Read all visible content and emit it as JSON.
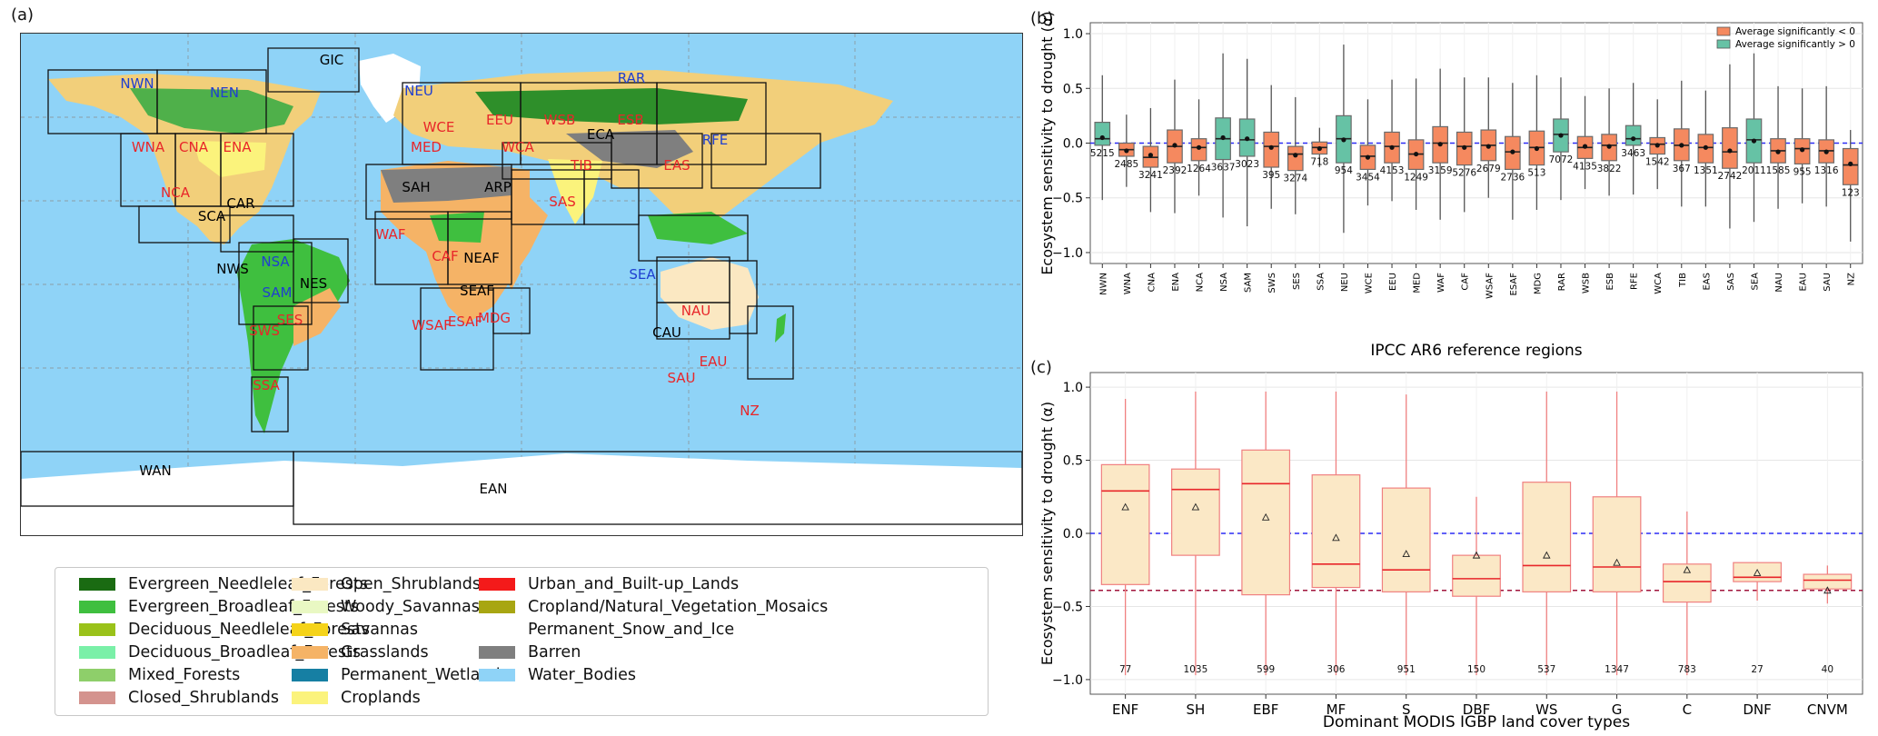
{
  "panel_labels": {
    "a": "(a)",
    "b": "(b)",
    "c": "(c)"
  },
  "map": {
    "regions": [
      {
        "label": "GIC",
        "color": "#000000"
      },
      {
        "label": "NWN",
        "color": "#1f3fd0"
      },
      {
        "label": "NEN",
        "color": "#1f3fd0"
      },
      {
        "label": "WNA",
        "color": "#e8262a"
      },
      {
        "label": "CNA",
        "color": "#e8262a"
      },
      {
        "label": "ENA",
        "color": "#e8262a"
      },
      {
        "label": "NCA",
        "color": "#e8262a"
      },
      {
        "label": "CAR",
        "color": "#000000"
      },
      {
        "label": "SCA",
        "color": "#000000"
      },
      {
        "label": "NWS",
        "color": "#000000"
      },
      {
        "label": "NSA",
        "color": "#1f3fd0"
      },
      {
        "label": "SAM",
        "color": "#1f3fd0"
      },
      {
        "label": "NES",
        "color": "#000000"
      },
      {
        "label": "SWS",
        "color": "#e8262a"
      },
      {
        "label": "SES",
        "color": "#e8262a"
      },
      {
        "label": "SSA",
        "color": "#e8262a"
      },
      {
        "label": "NEU",
        "color": "#1f3fd0"
      },
      {
        "label": "WCE",
        "color": "#e8262a"
      },
      {
        "label": "MED",
        "color": "#e8262a"
      },
      {
        "label": "EEU",
        "color": "#e8262a"
      },
      {
        "label": "WSB",
        "color": "#e8262a"
      },
      {
        "label": "ESB",
        "color": "#e8262a"
      },
      {
        "label": "RAR",
        "color": "#1f3fd0"
      },
      {
        "label": "RFE",
        "color": "#1f3fd0"
      },
      {
        "label": "WCA",
        "color": "#e8262a"
      },
      {
        "label": "ECA",
        "color": "#000000"
      },
      {
        "label": "TIB",
        "color": "#e8262a"
      },
      {
        "label": "EAS",
        "color": "#e8262a"
      },
      {
        "label": "SAS",
        "color": "#e8262a"
      },
      {
        "label": "SAH",
        "color": "#000000"
      },
      {
        "label": "ARP",
        "color": "#000000"
      },
      {
        "label": "WAF",
        "color": "#e8262a"
      },
      {
        "label": "CAF",
        "color": "#e8262a"
      },
      {
        "label": "NEAF",
        "color": "#000000"
      },
      {
        "label": "SEAF",
        "color": "#000000"
      },
      {
        "label": "WSAF",
        "color": "#e8262a"
      },
      {
        "label": "ESAF",
        "color": "#e8262a"
      },
      {
        "label": "MDG",
        "color": "#e8262a"
      },
      {
        "label": "SEA",
        "color": "#1f3fd0"
      },
      {
        "label": "NAU",
        "color": "#e8262a"
      },
      {
        "label": "CAU",
        "color": "#000000"
      },
      {
        "label": "EAU",
        "color": "#e8262a"
      },
      {
        "label": "SAU",
        "color": "#e8262a"
      },
      {
        "label": "NZ",
        "color": "#e8262a"
      },
      {
        "label": "WAN",
        "color": "#000000"
      },
      {
        "label": "EAN",
        "color": "#000000"
      }
    ]
  },
  "legend": [
    {
      "label": "Evergreen_Needleleaf_Forests",
      "color": "#1a6b12"
    },
    {
      "label": "Evergreen_Broadleaf_Forests",
      "color": "#3fbf3f"
    },
    {
      "label": "Deciduous_Needleleaf_Forests",
      "color": "#9ac21a"
    },
    {
      "label": "Deciduous_Broadleaf_Forests",
      "color": "#7af0a8"
    },
    {
      "label": "Mixed_Forests",
      "color": "#8ecf6a"
    },
    {
      "label": "Closed_Shrublands",
      "color": "#d4938e"
    },
    {
      "label": "Open_Shrublands",
      "color": "#fbe8c2"
    },
    {
      "label": "Woody_Savannas",
      "color": "#e9f8c3"
    },
    {
      "label": "Savannas",
      "color": "#f5d31a"
    },
    {
      "label": "Grasslands",
      "color": "#f5b366"
    },
    {
      "label": "Permanent_Wetlands",
      "color": "#167fa3"
    },
    {
      "label": "Croplands",
      "color": "#fbf37c"
    },
    {
      "label": "Urban_and_Built-up_Lands",
      "color": "#f41a1a"
    },
    {
      "label": "Cropland/Natural_Vegetation_Mosaics",
      "color": "#a8a612"
    },
    {
      "label": "Permanent_Snow_and_Ice",
      "color": "#ffffff"
    },
    {
      "label": "Barren",
      "color": "#7f7f7f"
    },
    {
      "label": "Water_Bodies",
      "color": "#8fd3f7"
    }
  ],
  "chart_data": [
    {
      "panel": "(b)",
      "type": "box",
      "xlabel": "IPCC AR6 reference regions",
      "ylabel": "Ecosystem sensitivity to drought (α)",
      "ylim": [
        -1.1,
        1.1
      ],
      "yticks": [
        "1.0",
        "0.5",
        "0.0",
        "−0.5",
        "−1.0"
      ],
      "hline": 0,
      "legend": {
        "placement": "top-right",
        "entries": [
          {
            "label": "Average significantly < 0",
            "color": "#f5895f"
          },
          {
            "label": "Average significantly > 0",
            "color": "#66c2a5"
          }
        ]
      },
      "categories": [
        "NWN",
        "WNA",
        "CNA",
        "ENA",
        "NCA",
        "NSA",
        "SAM",
        "SWS",
        "SES",
        "SSA",
        "NEU",
        "WCE",
        "EEU",
        "MED",
        "WAF",
        "CAF",
        "WSAF",
        "ESAF",
        "MDG",
        "RAR",
        "WSB",
        "ESB",
        "RFE",
        "WCA",
        "TIB",
        "EAS",
        "SAS",
        "SEA",
        "NAU",
        "EAU",
        "SAU",
        "NZ"
      ],
      "counts": [
        "5215",
        "2485",
        "3241",
        "2392",
        "1264",
        "3637",
        "3023",
        "395",
        "3274",
        "718",
        "954",
        "3454",
        "4153",
        "1249",
        "3159",
        "5276",
        "2679",
        "2736",
        "513",
        "7072",
        "4135",
        "3822",
        "3463",
        "1542",
        "367",
        "1351",
        "2742",
        "2011",
        "1585",
        "955",
        "1316",
        "123"
      ],
      "sign": [
        "pos",
        "neg",
        "neg",
        "neg",
        "neg",
        "pos",
        "pos",
        "neg",
        "neg",
        "neg",
        "pos",
        "neg",
        "neg",
        "neg",
        "neg",
        "neg",
        "neg",
        "neg",
        "neg",
        "pos",
        "neg",
        "neg",
        "pos",
        "neg",
        "neg",
        "neg",
        "neg",
        "pos",
        "neg",
        "neg",
        "neg",
        "neg"
      ],
      "q1": [
        -0.02,
        -0.12,
        -0.22,
        -0.18,
        -0.16,
        -0.15,
        -0.12,
        -0.22,
        -0.25,
        -0.1,
        -0.18,
        -0.24,
        -0.18,
        -0.24,
        -0.18,
        -0.2,
        -0.16,
        -0.24,
        -0.2,
        -0.08,
        -0.14,
        -0.16,
        -0.02,
        -0.1,
        -0.16,
        -0.18,
        -0.23,
        -0.18,
        -0.18,
        -0.19,
        -0.18,
        -0.38
      ],
      "median": [
        0.04,
        -0.06,
        -0.13,
        -0.03,
        -0.04,
        0.04,
        0.03,
        -0.03,
        -0.1,
        -0.04,
        0.04,
        -0.12,
        -0.03,
        -0.1,
        0.0,
        -0.03,
        -0.02,
        -0.08,
        -0.04,
        0.08,
        -0.04,
        -0.02,
        0.04,
        -0.01,
        -0.02,
        -0.04,
        -0.08,
        0.03,
        -0.07,
        -0.05,
        -0.07,
        -0.2
      ],
      "q3": [
        0.19,
        0.0,
        -0.03,
        0.12,
        0.04,
        0.23,
        0.22,
        0.1,
        -0.03,
        0.01,
        0.25,
        -0.02,
        0.1,
        0.03,
        0.15,
        0.1,
        0.12,
        0.06,
        0.11,
        0.22,
        0.06,
        0.08,
        0.16,
        0.05,
        0.13,
        0.08,
        0.14,
        0.22,
        0.04,
        0.04,
        0.03,
        -0.05
      ],
      "mean": [
        0.05,
        -0.07,
        -0.11,
        -0.02,
        -0.04,
        0.05,
        0.04,
        -0.04,
        -0.11,
        -0.05,
        0.03,
        -0.13,
        -0.04,
        -0.1,
        -0.01,
        -0.04,
        -0.03,
        -0.08,
        -0.05,
        0.07,
        -0.03,
        -0.03,
        0.04,
        -0.02,
        -0.02,
        -0.04,
        -0.07,
        0.02,
        -0.08,
        -0.06,
        -0.08,
        -0.19
      ],
      "wlo": [
        -0.52,
        -0.4,
        -0.63,
        -0.64,
        -0.48,
        -0.68,
        -0.76,
        -0.6,
        -0.65,
        -0.22,
        -0.82,
        -0.57,
        -0.53,
        -0.61,
        -0.7,
        -0.63,
        -0.5,
        -0.7,
        -0.61,
        -0.52,
        -0.42,
        -0.48,
        -0.47,
        -0.42,
        -0.58,
        -0.58,
        -0.78,
        -0.72,
        -0.6,
        -0.55,
        -0.58,
        -0.9
      ],
      "whi": [
        0.62,
        0.26,
        0.32,
        0.58,
        0.4,
        0.82,
        0.77,
        0.53,
        0.42,
        0.14,
        0.9,
        0.4,
        0.58,
        0.59,
        0.68,
        0.6,
        0.6,
        0.55,
        0.62,
        0.6,
        0.43,
        0.5,
        0.55,
        0.4,
        0.57,
        0.48,
        0.72,
        0.82,
        0.52,
        0.5,
        0.52,
        0.12
      ]
    },
    {
      "panel": "(c)",
      "type": "box",
      "xlabel": "Dominant MODIS IGBP land cover types",
      "ylabel": "Ecosystem sensitivity to drought (α)",
      "ylim": [
        -1.1,
        1.1
      ],
      "yticks": [
        "1.0",
        "0.5",
        "0.0",
        "−0.5",
        "−1.0"
      ],
      "hlines": [
        {
          "y": 0.0,
          "color": "#2b2bf5"
        },
        {
          "y": -0.39,
          "color": "#a0143c"
        }
      ],
      "categories": [
        "ENF",
        "SH",
        "EBF",
        "MF",
        "S",
        "DBF",
        "WS",
        "G",
        "C",
        "DNF",
        "CNVM"
      ],
      "counts": [
        "77",
        "1035",
        "599",
        "306",
        "951",
        "150",
        "537",
        "1347",
        "783",
        "27",
        "40"
      ],
      "q1": [
        -0.35,
        -0.15,
        -0.42,
        -0.37,
        -0.4,
        -0.43,
        -0.4,
        -0.4,
        -0.47,
        -0.33,
        -0.38
      ],
      "median": [
        0.29,
        0.3,
        0.34,
        -0.21,
        -0.25,
        -0.31,
        -0.22,
        -0.23,
        -0.33,
        -0.3,
        -0.32
      ],
      "q3": [
        0.47,
        0.44,
        0.57,
        0.4,
        0.31,
        -0.15,
        0.35,
        0.25,
        -0.21,
        -0.2,
        -0.28
      ],
      "mean": [
        0.18,
        0.18,
        0.11,
        -0.03,
        -0.14,
        -0.15,
        -0.15,
        -0.2,
        -0.25,
        -0.27,
        -0.39
      ],
      "wlo": [
        -0.97,
        -0.97,
        -0.97,
        -0.97,
        -0.97,
        -0.97,
        -0.97,
        -0.97,
        -0.97,
        -0.46,
        -0.48
      ],
      "whi": [
        0.92,
        0.97,
        0.97,
        0.97,
        0.95,
        0.25,
        0.97,
        0.97,
        0.15,
        -0.2,
        -0.22
      ]
    }
  ]
}
